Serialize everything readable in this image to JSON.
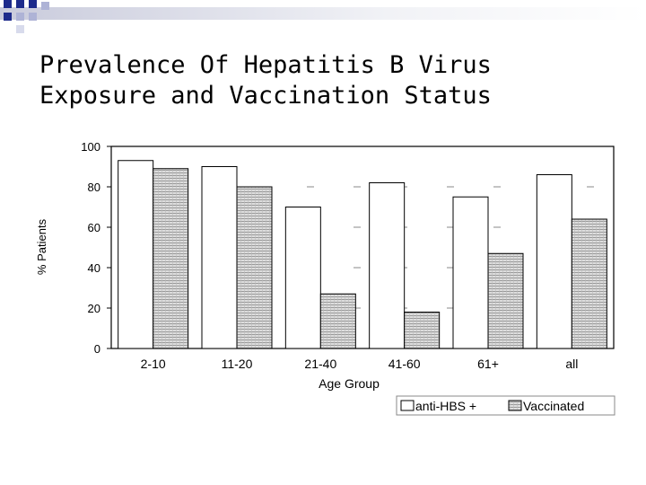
{
  "slide": {
    "title_lines": [
      "Prevalence Of Hepatitis B Virus",
      "Exposure and Vaccination Status"
    ]
  },
  "chart_data": {
    "type": "bar",
    "categories": [
      "2-10",
      "11-20",
      "21-40",
      "41-60",
      "61+",
      "all"
    ],
    "series": [
      {
        "name": "anti-HBS +",
        "values": [
          93,
          90,
          70,
          82,
          75,
          86
        ],
        "color": "#ffffff"
      },
      {
        "name": "Vaccinated",
        "values": [
          89,
          80,
          27,
          18,
          47,
          64
        ],
        "color": "#cccccc"
      }
    ],
    "xlabel": "Age Group",
    "ylabel": "% Patients",
    "ylim": [
      0,
      100
    ],
    "yticks": [
      "0",
      "20",
      "40",
      "60",
      "80",
      "100"
    ],
    "legend": "bottom-right"
  }
}
